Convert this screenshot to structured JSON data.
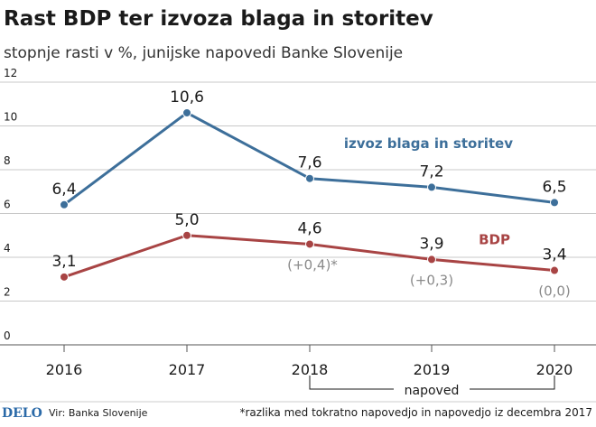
{
  "chart_data": {
    "type": "line",
    "title": "Rast BDP ter izvoza blaga in storitev",
    "subtitle": "stopnje rasti v %, junijske napovedi Banke Slovenije",
    "x": [
      "2016",
      "2017",
      "2018",
      "2019",
      "2020"
    ],
    "ylim": [
      0,
      12
    ],
    "yticks": [
      "0",
      "2",
      "4",
      "6",
      "8",
      "10",
      "12"
    ],
    "grid": true,
    "series": [
      {
        "name": "izvoz blaga in storitev",
        "color": "#3d6f9a",
        "values": [
          6.4,
          10.6,
          7.6,
          7.2,
          6.5
        ],
        "labels": [
          "6,4",
          "10,6",
          "7,6",
          "7,2",
          "6,5"
        ]
      },
      {
        "name": "BDP",
        "color": "#a84444",
        "values": [
          3.1,
          5.0,
          4.6,
          3.9,
          3.4
        ],
        "labels": [
          "3,1",
          "5,0",
          "4,6",
          "3,9",
          "3,4"
        ],
        "revisions": [
          "",
          "",
          "(+0,4)*",
          "(+0,3)",
          "(0,0)"
        ]
      }
    ],
    "forecast_range_label": "napoved",
    "forecast_range": [
      "2018",
      "2020"
    ]
  },
  "footer": {
    "logo": "DELO",
    "source": "Vir: Banka Slovenije",
    "note": "*razlika med tokratno napovedjo in napovedjo iz decembra 2017"
  }
}
